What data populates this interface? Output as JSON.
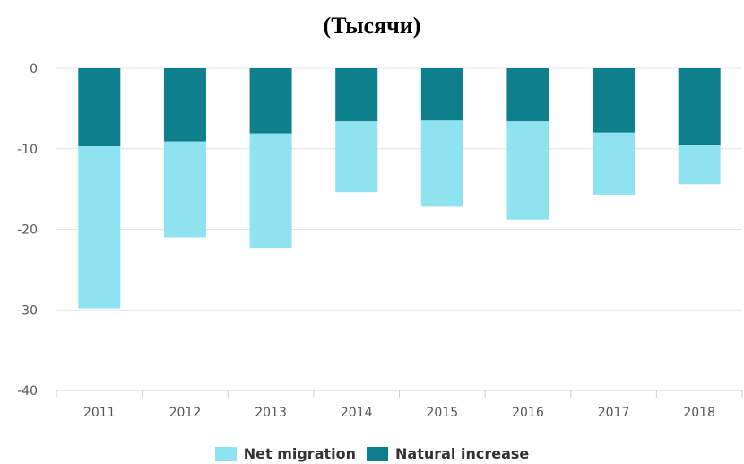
{
  "chart_data": {
    "type": "bar",
    "stacked": true,
    "title": "(Тысячи)",
    "xlabel": "",
    "ylabel": "",
    "categories": [
      "2011",
      "2012",
      "2013",
      "2014",
      "2015",
      "2016",
      "2017",
      "2018"
    ],
    "yticks": [
      "0",
      "-10",
      "-20",
      "-30",
      "-40"
    ],
    "ylim": [
      -40,
      0
    ],
    "grid": true,
    "legend_position": "bottom",
    "series": [
      {
        "name": "Natural increase",
        "color": "#0e7f8c",
        "values": [
          -9.7,
          -9.1,
          -8.1,
          -6.6,
          -6.5,
          -6.6,
          -8.0,
          -9.6
        ]
      },
      {
        "name": "Net migration",
        "color": "#8fe3f0",
        "values": [
          -20.1,
          -11.9,
          -14.2,
          -8.8,
          -10.7,
          -12.2,
          -7.7,
          -4.8
        ]
      }
    ]
  }
}
